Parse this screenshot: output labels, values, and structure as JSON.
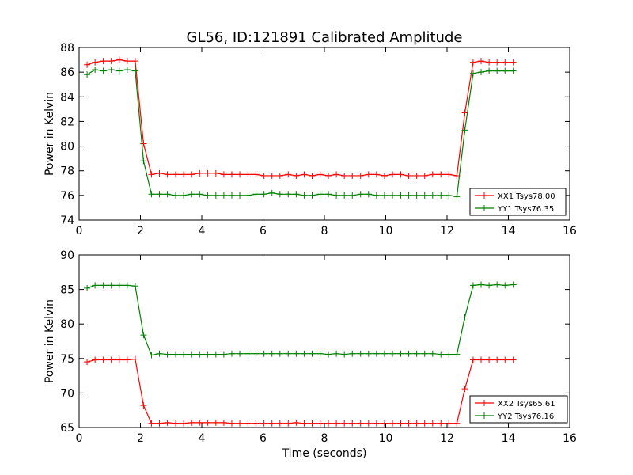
{
  "figure": {
    "title": "GL56, ID:121891 Calibrated Amplitude"
  },
  "chart_data": [
    {
      "type": "line",
      "title": "GL56, ID:121891 Calibrated Amplitude",
      "xlabel": "",
      "ylabel": "Power in Kelvin",
      "xlim": [
        0,
        16
      ],
      "ylim": [
        74,
        88
      ],
      "xticks": [
        0,
        2,
        4,
        6,
        8,
        10,
        12,
        14,
        16
      ],
      "yticks": [
        74,
        76,
        78,
        80,
        82,
        84,
        86,
        88
      ],
      "grid": false,
      "legend": "lower-right",
      "x": [
        0.26,
        0.52,
        0.79,
        1.05,
        1.31,
        1.57,
        1.83,
        2.1,
        2.36,
        2.62,
        2.88,
        3.15,
        3.41,
        3.67,
        3.93,
        4.19,
        4.46,
        4.72,
        4.98,
        5.24,
        5.51,
        5.77,
        6.03,
        6.29,
        6.55,
        6.82,
        7.08,
        7.34,
        7.6,
        7.86,
        8.13,
        8.39,
        8.65,
        8.91,
        9.18,
        9.44,
        9.7,
        9.96,
        10.22,
        10.49,
        10.75,
        11.01,
        11.27,
        11.53,
        11.8,
        12.06,
        12.32,
        12.58,
        12.85,
        13.11,
        13.37,
        13.63,
        13.89,
        14.16
      ],
      "series": [
        {
          "name": "XX1 Tsys78.00",
          "color": "#ff0000",
          "values": [
            86.6,
            86.8,
            86.9,
            86.9,
            87.0,
            86.9,
            86.9,
            80.2,
            77.7,
            77.8,
            77.7,
            77.7,
            77.7,
            77.7,
            77.8,
            77.8,
            77.8,
            77.7,
            77.7,
            77.7,
            77.7,
            77.7,
            77.6,
            77.6,
            77.6,
            77.7,
            77.6,
            77.7,
            77.6,
            77.7,
            77.6,
            77.7,
            77.6,
            77.6,
            77.6,
            77.7,
            77.7,
            77.6,
            77.7,
            77.7,
            77.6,
            77.6,
            77.6,
            77.7,
            77.7,
            77.7,
            77.6,
            82.7,
            86.8,
            86.9,
            86.8,
            86.8,
            86.8,
            86.8
          ]
        },
        {
          "name": "YY1 Tsys76.35",
          "color": "#008000",
          "values": [
            85.8,
            86.2,
            86.1,
            86.2,
            86.1,
            86.2,
            86.1,
            78.8,
            76.1,
            76.1,
            76.1,
            76.0,
            76.0,
            76.1,
            76.1,
            76.0,
            76.0,
            76.0,
            76.0,
            76.0,
            76.0,
            76.1,
            76.1,
            76.2,
            76.1,
            76.1,
            76.1,
            76.0,
            76.0,
            76.1,
            76.1,
            76.0,
            76.0,
            76.0,
            76.1,
            76.1,
            76.0,
            76.0,
            76.0,
            76.0,
            76.0,
            76.0,
            76.0,
            76.0,
            76.0,
            76.0,
            75.9,
            81.3,
            85.9,
            86.0,
            86.1,
            86.1,
            86.1,
            86.1
          ]
        }
      ]
    },
    {
      "type": "line",
      "title": "",
      "xlabel": "Time (seconds)",
      "ylabel": "Power in Kelvin",
      "xlim": [
        0,
        16
      ],
      "ylim": [
        65,
        90
      ],
      "xticks": [
        0,
        2,
        4,
        6,
        8,
        10,
        12,
        14,
        16
      ],
      "yticks": [
        65,
        70,
        75,
        80,
        85,
        90
      ],
      "grid": false,
      "legend": "lower-right",
      "x": [
        0.26,
        0.52,
        0.79,
        1.05,
        1.31,
        1.57,
        1.83,
        2.1,
        2.36,
        2.62,
        2.88,
        3.15,
        3.41,
        3.67,
        3.93,
        4.19,
        4.46,
        4.72,
        4.98,
        5.24,
        5.51,
        5.77,
        6.03,
        6.29,
        6.55,
        6.82,
        7.08,
        7.34,
        7.6,
        7.86,
        8.13,
        8.39,
        8.65,
        8.91,
        9.18,
        9.44,
        9.7,
        9.96,
        10.22,
        10.49,
        10.75,
        11.01,
        11.27,
        11.53,
        11.8,
        12.06,
        12.32,
        12.58,
        12.85,
        13.11,
        13.37,
        13.63,
        13.89,
        14.16
      ],
      "series": [
        {
          "name": "XX2 Tsys65.61",
          "color": "#ff0000",
          "values": [
            74.5,
            74.8,
            74.8,
            74.8,
            74.8,
            74.8,
            74.9,
            68.2,
            65.6,
            65.6,
            65.7,
            65.6,
            65.6,
            65.7,
            65.7,
            65.7,
            65.7,
            65.7,
            65.6,
            65.6,
            65.6,
            65.6,
            65.6,
            65.6,
            65.6,
            65.6,
            65.7,
            65.6,
            65.6,
            65.6,
            65.6,
            65.6,
            65.6,
            65.6,
            65.6,
            65.6,
            65.6,
            65.6,
            65.6,
            65.6,
            65.6,
            65.6,
            65.6,
            65.6,
            65.6,
            65.6,
            65.6,
            70.6,
            74.8,
            74.8,
            74.8,
            74.8,
            74.8,
            74.8
          ]
        },
        {
          "name": "YY2 Tsys76.16",
          "color": "#008000",
          "values": [
            85.2,
            85.6,
            85.6,
            85.6,
            85.6,
            85.6,
            85.5,
            78.4,
            75.5,
            75.7,
            75.6,
            75.6,
            75.6,
            75.6,
            75.6,
            75.6,
            75.6,
            75.6,
            75.7,
            75.7,
            75.7,
            75.7,
            75.7,
            75.7,
            75.7,
            75.7,
            75.7,
            75.7,
            75.7,
            75.7,
            75.6,
            75.7,
            75.6,
            75.7,
            75.7,
            75.7,
            75.7,
            75.7,
            75.7,
            75.7,
            75.7,
            75.7,
            75.7,
            75.7,
            75.6,
            75.6,
            75.6,
            81.0,
            85.6,
            85.7,
            85.6,
            85.7,
            85.6,
            85.7
          ]
        }
      ]
    }
  ]
}
